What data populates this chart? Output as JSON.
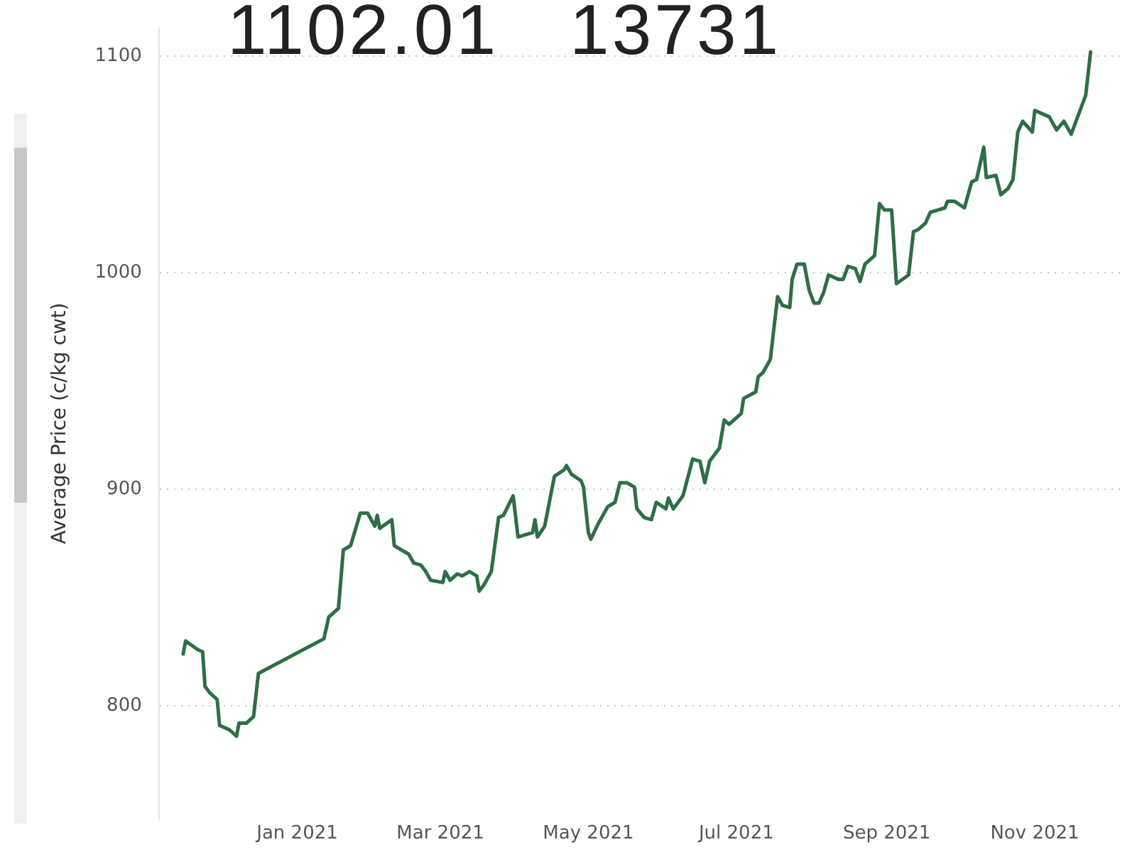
{
  "chart_data": {
    "type": "line",
    "ylabel": "Average Price (c/kg cwt)",
    "annotations": [
      "1102.01",
      "13731"
    ],
    "x": [
      "2020-11-15",
      "2020-11-16",
      "2020-11-21",
      "2020-11-23",
      "2020-11-24",
      "2020-11-26",
      "2020-11-29",
      "2020-11-30",
      "2020-12-04",
      "2020-12-07",
      "2020-12-08",
      "2020-12-11",
      "2020-12-14",
      "2020-12-16",
      "2021-01-12",
      "2021-01-14",
      "2021-01-18",
      "2021-01-20",
      "2021-01-23",
      "2021-01-27",
      "2021-01-30",
      "2021-02-02",
      "2021-02-03",
      "2021-02-04",
      "2021-02-09",
      "2021-02-10",
      "2021-02-13",
      "2021-02-16",
      "2021-02-18",
      "2021-02-21",
      "2021-02-23",
      "2021-02-25",
      "2021-03-02",
      "2021-03-03",
      "2021-03-05",
      "2021-03-08",
      "2021-03-10",
      "2021-03-13",
      "2021-03-16",
      "2021-03-17",
      "2021-03-19",
      "2021-03-22",
      "2021-03-25",
      "2021-03-27",
      "2021-03-31",
      "2021-04-02",
      "2021-04-08",
      "2021-04-09",
      "2021-04-10",
      "2021-04-13",
      "2021-04-17",
      "2021-04-21",
      "2021-04-22",
      "2021-04-24",
      "2021-04-28",
      "2021-04-29",
      "2021-05-01",
      "2021-05-02",
      "2021-05-05",
      "2021-05-09",
      "2021-05-12",
      "2021-05-14",
      "2021-05-17",
      "2021-05-20",
      "2021-05-21",
      "2021-05-24",
      "2021-05-27",
      "2021-05-29",
      "2021-06-02",
      "2021-06-03",
      "2021-06-05",
      "2021-06-09",
      "2021-06-13",
      "2021-06-16",
      "2021-06-18",
      "2021-06-20",
      "2021-06-24",
      "2021-06-26",
      "2021-06-28",
      "2021-07-03",
      "2021-07-04",
      "2021-07-09",
      "2021-07-10",
      "2021-07-12",
      "2021-07-15",
      "2021-07-18",
      "2021-07-20",
      "2021-07-23",
      "2021-07-24",
      "2021-07-26",
      "2021-07-29",
      "2021-07-31",
      "2021-08-02",
      "2021-08-04",
      "2021-08-06",
      "2021-08-08",
      "2021-08-12",
      "2021-08-14",
      "2021-08-16",
      "2021-08-19",
      "2021-08-21",
      "2021-08-23",
      "2021-08-27",
      "2021-08-29",
      "2021-08-31",
      "2021-09-03",
      "2021-09-05",
      "2021-09-10",
      "2021-09-12",
      "2021-09-14",
      "2021-09-17",
      "2021-09-19",
      "2021-09-22",
      "2021-09-25",
      "2021-09-26",
      "2021-09-29",
      "2021-10-03",
      "2021-10-06",
      "2021-10-08",
      "2021-10-11",
      "2021-10-12",
      "2021-10-16",
      "2021-10-18",
      "2021-10-21",
      "2021-10-23",
      "2021-10-25",
      "2021-10-27",
      "2021-10-31",
      "2021-11-01",
      "2021-11-05",
      "2021-11-07",
      "2021-11-10",
      "2021-11-13",
      "2021-11-16",
      "2021-11-18",
      "2021-11-22",
      "2021-11-24"
    ],
    "series": [
      {
        "color": "#2e6e46",
        "values": [
          824,
          830,
          826,
          825,
          809,
          806,
          803,
          791,
          789,
          786,
          792,
          792,
          795,
          815,
          831,
          841,
          845,
          872,
          874,
          889,
          889,
          883,
          888,
          882,
          886,
          874,
          872,
          870,
          866,
          865,
          862,
          858,
          857,
          862,
          858,
          861,
          860,
          862,
          860,
          853,
          856,
          862,
          887,
          888,
          897,
          878,
          880,
          886,
          878,
          883,
          906,
          909,
          911,
          907,
          904,
          901,
          880,
          877,
          884,
          892,
          894,
          903,
          903,
          901,
          891,
          887,
          886,
          894,
          891,
          896,
          891,
          897,
          914,
          913,
          903,
          913,
          919,
          932,
          930,
          935,
          942,
          945,
          952,
          954,
          960,
          989,
          985,
          984,
          997,
          1004,
          1004,
          992,
          986,
          986,
          991,
          999,
          997,
          997,
          1003,
          1002,
          996,
          1004,
          1008,
          1032,
          1029,
          1029,
          995,
          999,
          1019,
          1020,
          1023,
          1028,
          1029,
          1030,
          1033,
          1033,
          1030,
          1042,
          1043,
          1058,
          1044,
          1045,
          1036,
          1039,
          1043,
          1065,
          1070,
          1065,
          1075,
          1073,
          1072,
          1066,
          1070,
          1064,
          1070,
          1082,
          1102
        ]
      }
    ],
    "xlim": [
      "2020-11-05",
      "2021-12-07"
    ],
    "xticks": [
      {
        "value": "2021-01-01",
        "label": "Jan 2021"
      },
      {
        "value": "2021-03-01",
        "label": "Mar 2021"
      },
      {
        "value": "2021-05-01",
        "label": "May 2021"
      },
      {
        "value": "2021-07-01",
        "label": "Jul 2021"
      },
      {
        "value": "2021-09-01",
        "label": "Sep 2021"
      },
      {
        "value": "2021-11-01",
        "label": "Nov 2021"
      }
    ],
    "ylim": [
      748,
      1113
    ],
    "yticks": [
      800,
      900,
      1000,
      1100
    ],
    "grid": "y",
    "legend": false,
    "marker": "none",
    "line_style": "solid"
  }
}
